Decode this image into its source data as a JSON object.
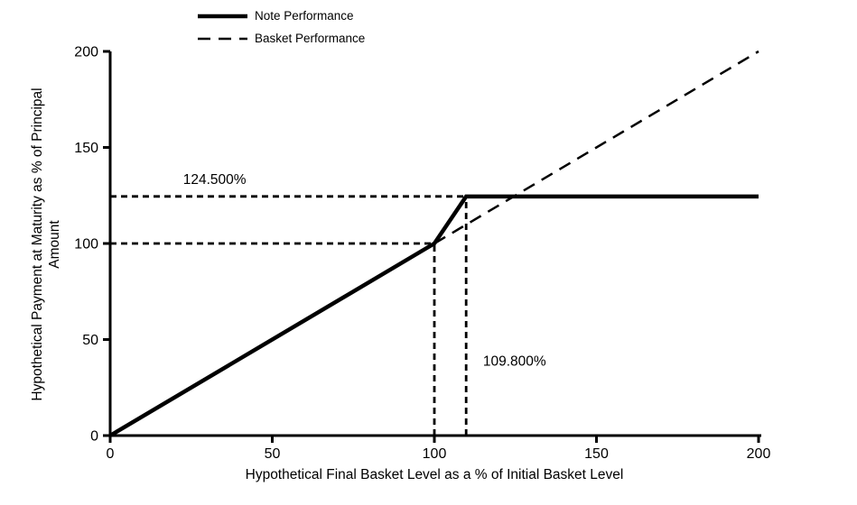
{
  "colors": {
    "foreground": "#000000",
    "background": "#ffffff"
  },
  "chart_data": {
    "type": "line",
    "title": "",
    "xlabel": "Hypothetical Final Basket Level as a % of Initial Basket Level",
    "ylabel_line1": "Hypothetical Payment at Maturity as % of Principal",
    "ylabel_line2": "Amount",
    "xlim": [
      0,
      200
    ],
    "ylim": [
      0,
      200
    ],
    "x_ticks": [
      0,
      50,
      100,
      150,
      200
    ],
    "y_ticks": [
      0,
      50,
      100,
      150,
      200
    ],
    "grid": false,
    "legend_position": "top-left",
    "series": [
      {
        "name": "Note Performance",
        "style": "solid",
        "width": 4.5,
        "points": [
          [
            0,
            0
          ],
          [
            100,
            100
          ],
          [
            109.8,
            124.5
          ],
          [
            200,
            124.5
          ]
        ]
      },
      {
        "name": "Basket Performance",
        "style": "dashed",
        "dash": "14 9",
        "width": 2.5,
        "points": [
          [
            100,
            100
          ],
          [
            200,
            200
          ]
        ]
      }
    ],
    "reference_lines": [
      {
        "name": "cap-level-horizontal",
        "points": [
          [
            0,
            124.5
          ],
          [
            109.8,
            124.5
          ]
        ]
      },
      {
        "name": "initial-level-horizontal",
        "points": [
          [
            0,
            100
          ],
          [
            100,
            100
          ]
        ]
      },
      {
        "name": "initial-level-vertical",
        "points": [
          [
            100,
            0
          ],
          [
            100,
            100
          ]
        ]
      },
      {
        "name": "cap-threshold-vertical",
        "points": [
          [
            109.8,
            0
          ],
          [
            109.8,
            124.5
          ]
        ]
      }
    ],
    "annotations": [
      {
        "text": "124.500%",
        "x": 22.5,
        "y": 131,
        "anchor": "start"
      },
      {
        "text": "109.800%",
        "x": 115,
        "y": 36.5,
        "anchor": "start"
      }
    ]
  }
}
